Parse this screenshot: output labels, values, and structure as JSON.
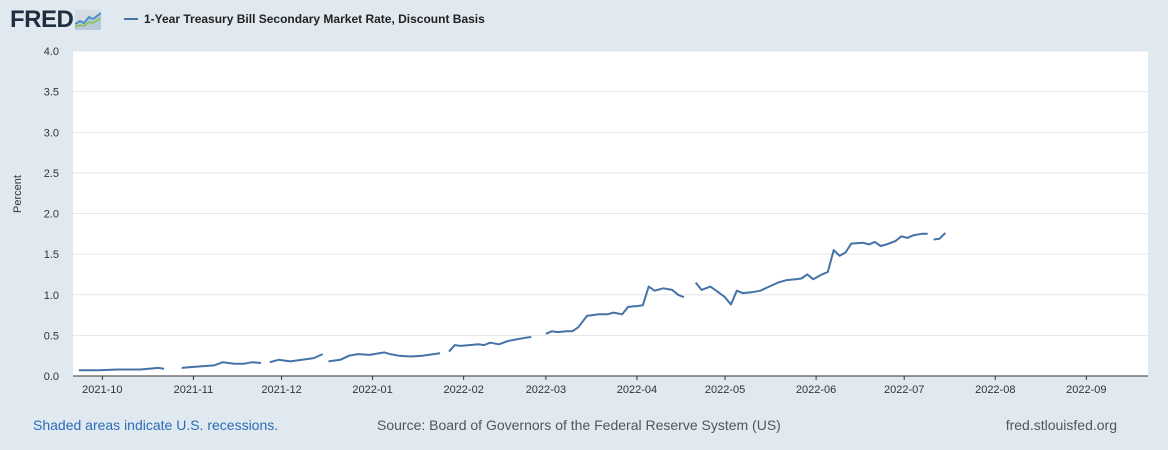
{
  "logo": {
    "text": "FRED"
  },
  "chart_data": {
    "type": "line",
    "title": "",
    "series": [
      {
        "name": "1-Year Treasury Bill Secondary Market Rate, Discount Basis",
        "color": "#4572a7",
        "segments": [
          [
            [
              "2021-09-23",
              0.07
            ],
            [
              "2021-09-30",
              0.07
            ],
            [
              "2021-10-06",
              0.08
            ],
            [
              "2021-10-11",
              0.08
            ],
            [
              "2021-10-14",
              0.08
            ],
            [
              "2021-10-20",
              0.1
            ],
            [
              "2021-10-22",
              0.09
            ]
          ],
          [
            [
              "2021-10-28",
              0.1
            ],
            [
              "2021-10-31",
              0.11
            ],
            [
              "2021-11-04",
              0.12
            ],
            [
              "2021-11-08",
              0.13
            ],
            [
              "2021-11-11",
              0.17
            ],
            [
              "2021-11-15",
              0.15
            ],
            [
              "2021-11-18",
              0.15
            ],
            [
              "2021-11-21",
              0.17
            ],
            [
              "2021-11-24",
              0.16
            ]
          ],
          [
            [
              "2021-11-27",
              0.17
            ],
            [
              "2021-11-30",
              0.2
            ],
            [
              "2021-12-04",
              0.18
            ],
            [
              "2021-12-08",
              0.2
            ],
            [
              "2021-12-12",
              0.22
            ],
            [
              "2021-12-15",
              0.27
            ]
          ],
          [
            [
              "2021-12-17",
              0.18
            ],
            [
              "2021-12-21",
              0.2
            ],
            [
              "2021-12-24",
              0.25
            ],
            [
              "2021-12-27",
              0.27
            ],
            [
              "2021-12-31",
              0.26
            ],
            [
              "2022-01-05",
              0.29
            ],
            [
              "2022-01-07",
              0.27
            ],
            [
              "2022-01-10",
              0.25
            ],
            [
              "2022-01-14",
              0.24
            ],
            [
              "2022-01-18",
              0.25
            ],
            [
              "2022-01-20",
              0.26
            ],
            [
              "2022-01-24",
              0.28
            ]
          ],
          [
            [
              "2022-01-27",
              0.3
            ],
            [
              "2022-01-29",
              0.38
            ],
            [
              "2022-01-31",
              0.37
            ],
            [
              "2022-02-03",
              0.38
            ],
            [
              "2022-02-06",
              0.39
            ],
            [
              "2022-02-08",
              0.38
            ],
            [
              "2022-02-10",
              0.41
            ],
            [
              "2022-02-13",
              0.39
            ],
            [
              "2022-02-16",
              0.43
            ],
            [
              "2022-02-19",
              0.45
            ],
            [
              "2022-02-22",
              0.47
            ],
            [
              "2022-02-24",
              0.48
            ]
          ],
          [
            [
              "2022-03-01",
              0.52
            ],
            [
              "2022-03-03",
              0.55
            ],
            [
              "2022-03-05",
              0.54
            ],
            [
              "2022-03-08",
              0.55
            ],
            [
              "2022-03-10",
              0.55
            ],
            [
              "2022-03-12",
              0.6
            ],
            [
              "2022-03-15",
              0.74
            ],
            [
              "2022-03-19",
              0.76
            ],
            [
              "2022-03-22",
              0.76
            ],
            [
              "2022-03-24",
              0.78
            ],
            [
              "2022-03-27",
              0.76
            ],
            [
              "2022-03-29",
              0.85
            ],
            [
              "2022-04-01",
              0.86
            ],
            [
              "2022-04-03",
              0.87
            ],
            [
              "2022-04-05",
              1.1
            ],
            [
              "2022-04-07",
              1.05
            ],
            [
              "2022-04-10",
              1.08
            ],
            [
              "2022-04-13",
              1.06
            ],
            [
              "2022-04-15",
              1.0
            ],
            [
              "2022-04-17",
              0.97
            ]
          ],
          [
            [
              "2022-04-21",
              1.15
            ],
            [
              "2022-04-23",
              1.06
            ],
            [
              "2022-04-26",
              1.1
            ],
            [
              "2022-04-28",
              1.05
            ],
            [
              "2022-05-01",
              0.97
            ],
            [
              "2022-05-03",
              0.88
            ],
            [
              "2022-05-05",
              1.05
            ],
            [
              "2022-05-07",
              1.02
            ],
            [
              "2022-05-10",
              1.03
            ],
            [
              "2022-05-13",
              1.05
            ],
            [
              "2022-05-16",
              1.1
            ],
            [
              "2022-05-19",
              1.15
            ],
            [
              "2022-05-22",
              1.18
            ],
            [
              "2022-05-25",
              1.19
            ],
            [
              "2022-05-27",
              1.2
            ],
            [
              "2022-05-29",
              1.25
            ],
            [
              "2022-05-31",
              1.19
            ],
            [
              "2022-06-03",
              1.25
            ],
            [
              "2022-06-05",
              1.28
            ],
            [
              "2022-06-07",
              1.55
            ],
            [
              "2022-06-09",
              1.48
            ],
            [
              "2022-06-11",
              1.52
            ],
            [
              "2022-06-13",
              1.63
            ],
            [
              "2022-06-17",
              1.64
            ],
            [
              "2022-06-19",
              1.62
            ],
            [
              "2022-06-21",
              1.65
            ],
            [
              "2022-06-23",
              1.6
            ],
            [
              "2022-06-25",
              1.62
            ],
            [
              "2022-06-28",
              1.66
            ],
            [
              "2022-06-30",
              1.72
            ],
            [
              "2022-07-02",
              1.7
            ],
            [
              "2022-07-04",
              1.73
            ],
            [
              "2022-07-07",
              1.75
            ],
            [
              "2022-07-09",
              1.75
            ]
          ],
          [
            [
              "2022-07-11",
              1.68
            ],
            [
              "2022-07-13",
              1.69
            ],
            [
              "2022-07-15",
              1.76
            ]
          ],
          [
            [
              "2022-04-05",
              1.15
            ]
          ],
          [
            [
              "2022-04-05",
              1.15
            ]
          ]
        ]
      }
    ],
    "ylabel": "Percent",
    "ylim": [
      0,
      4.0
    ],
    "yticks": [
      "0.0",
      "0.5",
      "1.0",
      "1.5",
      "2.0",
      "2.5",
      "3.0",
      "3.5",
      "4.0"
    ],
    "xlim": [
      "2021-09-21",
      "2022-09-22"
    ],
    "xticks": [
      "2021-10",
      "2021-11",
      "2021-12",
      "2022-01",
      "2022-02",
      "2022-03",
      "2022-04",
      "2022-05",
      "2022-06",
      "2022-07",
      "2022-08",
      "2022-09"
    ],
    "grid": true,
    "legend": "top-left"
  },
  "footer": {
    "left": "Shaded areas indicate U.S. recessions.",
    "source": "Source: Board of Governors of the Federal Reserve System (US)",
    "site": "fred.stlouisfed.org"
  }
}
